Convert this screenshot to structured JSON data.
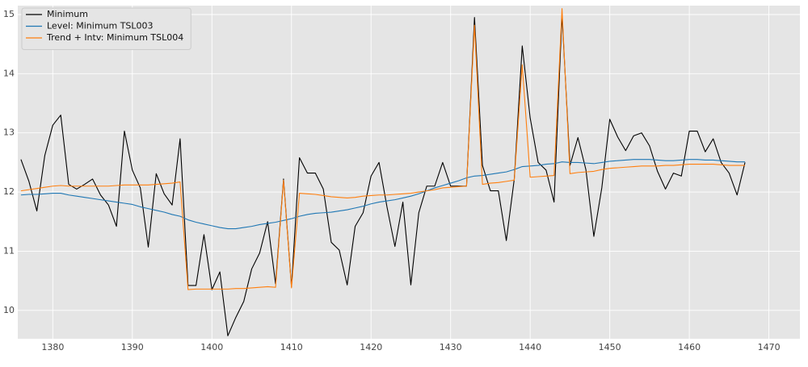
{
  "chart_data": {
    "type": "line",
    "x": [
      1376,
      1377,
      1378,
      1379,
      1380,
      1381,
      1382,
      1383,
      1384,
      1385,
      1386,
      1387,
      1388,
      1389,
      1390,
      1391,
      1392,
      1393,
      1394,
      1395,
      1396,
      1397,
      1398,
      1399,
      1400,
      1401,
      1402,
      1403,
      1404,
      1405,
      1406,
      1407,
      1408,
      1409,
      1410,
      1411,
      1412,
      1413,
      1414,
      1415,
      1416,
      1417,
      1418,
      1419,
      1420,
      1421,
      1422,
      1423,
      1424,
      1425,
      1426,
      1427,
      1428,
      1429,
      1430,
      1431,
      1432,
      1433,
      1434,
      1435,
      1436,
      1437,
      1438,
      1439,
      1440,
      1441,
      1442,
      1443,
      1444,
      1445,
      1446,
      1447,
      1448,
      1449,
      1450,
      1451,
      1452,
      1453,
      1454,
      1455,
      1456,
      1457,
      1458,
      1459,
      1460,
      1461,
      1462,
      1463,
      1464,
      1465,
      1466,
      1467
    ],
    "series": [
      {
        "name": "Minimum",
        "color": "#000000",
        "values": [
          12.55,
          12.18,
          11.68,
          12.62,
          13.13,
          13.3,
          12.13,
          12.05,
          12.13,
          12.22,
          11.95,
          11.78,
          11.42,
          13.03,
          12.37,
          12.07,
          11.07,
          12.31,
          11.97,
          11.78,
          12.9,
          10.42,
          10.42,
          11.28,
          10.35,
          10.65,
          9.57,
          9.88,
          10.15,
          10.7,
          10.97,
          11.5,
          10.45,
          12.22,
          10.4,
          12.58,
          12.32,
          12.32,
          12.05,
          11.15,
          11.02,
          10.43,
          11.42,
          11.65,
          12.27,
          12.5,
          11.75,
          11.08,
          11.83,
          10.43,
          11.65,
          12.1,
          12.1,
          12.5,
          12.1,
          12.1,
          12.1,
          14.95,
          12.45,
          12.02,
          12.02,
          11.18,
          12.22,
          14.47,
          13.25,
          12.5,
          12.37,
          11.83,
          15.0,
          12.45,
          12.92,
          12.38,
          11.25,
          12.07,
          13.23,
          12.93,
          12.7,
          12.95,
          13.0,
          12.78,
          12.35,
          12.05,
          12.32,
          12.27,
          13.03,
          13.03,
          12.68,
          12.9,
          12.5,
          12.32,
          11.95,
          12.5
        ]
      },
      {
        "name": "Level: Minimum TSL003",
        "color": "#1f77b4",
        "values": [
          11.95,
          11.96,
          11.96,
          11.97,
          11.98,
          11.98,
          11.95,
          11.93,
          11.91,
          11.89,
          11.87,
          11.85,
          11.83,
          11.81,
          11.79,
          11.75,
          11.72,
          11.69,
          11.66,
          11.62,
          11.59,
          11.53,
          11.49,
          11.46,
          11.43,
          11.4,
          11.38,
          11.38,
          11.4,
          11.42,
          11.45,
          11.47,
          11.49,
          11.52,
          11.55,
          11.59,
          11.62,
          11.64,
          11.65,
          11.66,
          11.68,
          11.7,
          11.73,
          11.76,
          11.8,
          11.83,
          11.85,
          11.87,
          11.9,
          11.93,
          11.97,
          12.02,
          12.07,
          12.11,
          12.15,
          12.19,
          12.24,
          12.27,
          12.28,
          12.3,
          12.32,
          12.34,
          12.38,
          12.43,
          12.44,
          12.45,
          12.47,
          12.48,
          12.51,
          12.5,
          12.5,
          12.49,
          12.48,
          12.5,
          12.52,
          12.53,
          12.54,
          12.55,
          12.55,
          12.55,
          12.54,
          12.53,
          12.53,
          12.54,
          12.55,
          12.55,
          12.54,
          12.54,
          12.53,
          12.52,
          12.51,
          12.51
        ]
      },
      {
        "name": "Trend + Intv: Minimum TSL004",
        "color": "#ff7f0e",
        "values": [
          12.02,
          12.04,
          12.06,
          12.08,
          12.1,
          12.11,
          12.1,
          12.1,
          12.1,
          12.1,
          12.1,
          12.1,
          12.11,
          12.12,
          12.12,
          12.12,
          12.12,
          12.13,
          12.14,
          12.15,
          12.17,
          10.35,
          10.36,
          10.36,
          10.36,
          10.36,
          10.36,
          10.37,
          10.37,
          10.38,
          10.39,
          10.4,
          10.39,
          12.2,
          10.38,
          11.98,
          11.97,
          11.96,
          11.94,
          11.92,
          11.91,
          11.9,
          11.91,
          11.93,
          11.94,
          11.95,
          11.95,
          11.96,
          11.97,
          11.98,
          12.0,
          12.02,
          12.04,
          12.07,
          12.08,
          12.09,
          12.1,
          14.82,
          12.13,
          12.15,
          12.16,
          12.18,
          12.2,
          14.15,
          12.25,
          12.26,
          12.27,
          12.28,
          15.1,
          12.31,
          12.33,
          12.34,
          12.35,
          12.38,
          12.4,
          12.41,
          12.42,
          12.43,
          12.44,
          12.44,
          12.44,
          12.45,
          12.45,
          12.46,
          12.47,
          12.47,
          12.47,
          12.47,
          12.46,
          12.45,
          12.45,
          12.45
        ]
      }
    ],
    "xlim": [
      1375.6,
      1473.9
    ],
    "ylim": [
      9.52,
      15.15
    ],
    "xticks": [
      1380,
      1390,
      1400,
      1410,
      1420,
      1430,
      1440,
      1450,
      1460,
      1470
    ],
    "yticks": [
      10,
      11,
      12,
      13,
      14,
      15
    ],
    "grid": true,
    "legend": "upper-left"
  }
}
